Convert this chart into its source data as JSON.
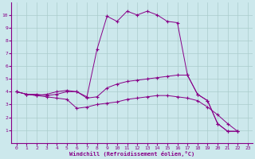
{
  "xlabel": "Windchill (Refroidissement éolien,°C)",
  "background_color": "#cce8ec",
  "line_color": "#880088",
  "grid_color": "#aacccc",
  "xlim": [
    -0.5,
    23.5
  ],
  "ylim": [
    0,
    11
  ],
  "xticks": [
    0,
    1,
    2,
    3,
    4,
    5,
    6,
    7,
    8,
    9,
    10,
    11,
    12,
    13,
    14,
    15,
    16,
    17,
    18,
    19,
    20,
    21,
    22,
    23
  ],
  "yticks": [
    1,
    2,
    3,
    4,
    5,
    6,
    7,
    8,
    9,
    10
  ],
  "series": [
    {
      "x": [
        0,
        1,
        2,
        3,
        4,
        5,
        6,
        7,
        8,
        9,
        10,
        11,
        12,
        13,
        14,
        15,
        16,
        17,
        18,
        19,
        20,
        21,
        22
      ],
      "y": [
        4.0,
        3.8,
        3.8,
        3.7,
        3.8,
        4.0,
        4.0,
        3.6,
        7.3,
        9.9,
        9.5,
        10.3,
        10.0,
        10.3,
        10.0,
        9.5,
        9.4,
        5.3,
        3.8,
        3.3,
        1.5,
        0.9,
        0.9
      ]
    },
    {
      "x": [
        0,
        1,
        2,
        3,
        4,
        5,
        6,
        7,
        8,
        9,
        10,
        11,
        12,
        13,
        14,
        15,
        16,
        17,
        18,
        19,
        20,
        21,
        22
      ],
      "y": [
        4.0,
        3.8,
        3.7,
        3.8,
        4.0,
        4.1,
        4.0,
        3.5,
        3.6,
        4.3,
        4.6,
        4.8,
        4.9,
        5.0,
        5.1,
        5.2,
        5.3,
        5.3,
        3.8,
        3.3,
        1.5,
        0.9,
        0.9
      ]
    },
    {
      "x": [
        0,
        1,
        2,
        3,
        4,
        5,
        6,
        7,
        8,
        9,
        10,
        11,
        12,
        13,
        14,
        15,
        16,
        17,
        18,
        19,
        20,
        21,
        22
      ],
      "y": [
        4.0,
        3.8,
        3.7,
        3.6,
        3.5,
        3.4,
        2.7,
        2.8,
        3.0,
        3.1,
        3.2,
        3.4,
        3.5,
        3.6,
        3.7,
        3.7,
        3.6,
        3.5,
        3.3,
        2.8,
        2.2,
        1.5,
        0.9
      ]
    }
  ]
}
